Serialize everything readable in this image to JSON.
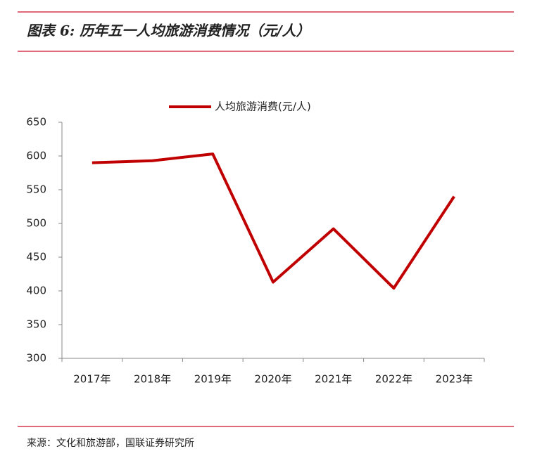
{
  "header": {
    "title": "图表 6: 历年五一人均旅游消费情况（元/人）"
  },
  "chart_data": {
    "type": "line",
    "categories": [
      "2017年",
      "2018年",
      "2019年",
      "2020年",
      "2021年",
      "2022年",
      "2023年"
    ],
    "series": [
      {
        "name": "人均旅游消费(元/人)",
        "color": "#c00000",
        "values": [
          590,
          593,
          603,
          413,
          492,
          404,
          540
        ]
      }
    ],
    "ylim": [
      300,
      650
    ],
    "yticks": [
      300,
      350,
      400,
      450,
      500,
      550,
      600,
      650
    ],
    "grid": false,
    "legend": "top"
  },
  "footer": {
    "source": "来源：文化和旅游部，国联证券研究所"
  }
}
